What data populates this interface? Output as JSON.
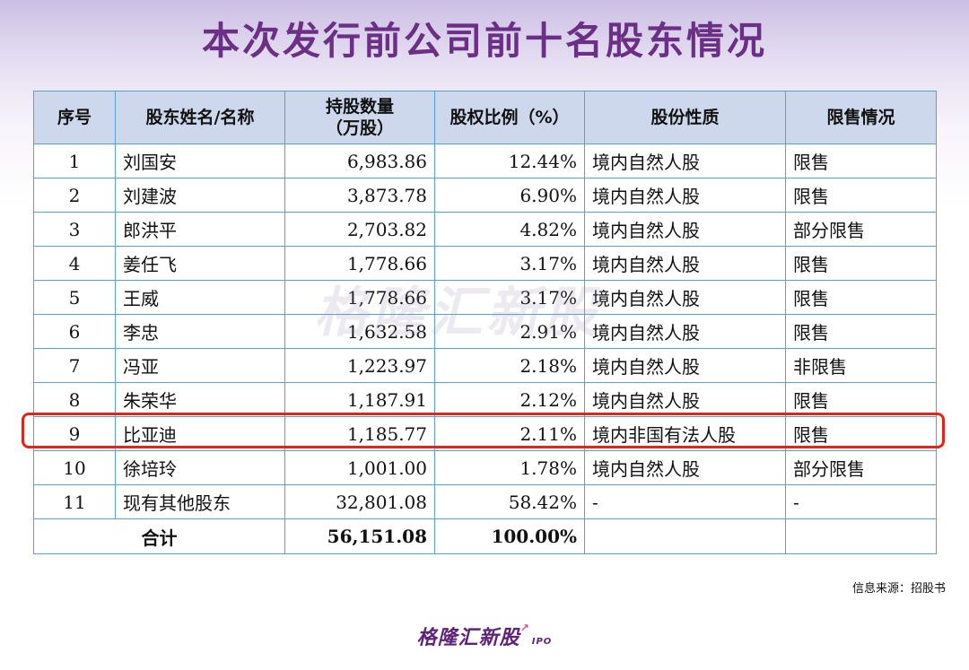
{
  "title": "本次发行前公司前十名股东情况",
  "table": {
    "headers": {
      "seq": "序号",
      "name": "股东姓名/名称",
      "shares_line1": "持股数量",
      "shares_line2": "（万股）",
      "ratio": "股权比例（%）",
      "nature": "股份性质",
      "restriction": "限售情况"
    },
    "rows": [
      {
        "seq": "1",
        "name": "刘国安",
        "shares": "6,983.86",
        "ratio": "12.44%",
        "nature": "境内自然人股",
        "restriction": "限售"
      },
      {
        "seq": "2",
        "name": "刘建波",
        "shares": "3,873.78",
        "ratio": "6.90%",
        "nature": "境内自然人股",
        "restriction": "限售"
      },
      {
        "seq": "3",
        "name": "郎洪平",
        "shares": "2,703.82",
        "ratio": "4.82%",
        "nature": "境内自然人股",
        "restriction": "部分限售"
      },
      {
        "seq": "4",
        "name": "姜任飞",
        "shares": "1,778.66",
        "ratio": "3.17%",
        "nature": "境内自然人股",
        "restriction": "限售"
      },
      {
        "seq": "5",
        "name": "王威",
        "shares": "1,778.66",
        "ratio": "3.17%",
        "nature": "境内自然人股",
        "restriction": "限售"
      },
      {
        "seq": "6",
        "name": "李忠",
        "shares": "1,632.58",
        "ratio": "2.91%",
        "nature": "境内自然人股",
        "restriction": "限售"
      },
      {
        "seq": "7",
        "name": "冯亚",
        "shares": "1,223.97",
        "ratio": "2.18%",
        "nature": "境内自然人股",
        "restriction": "非限售"
      },
      {
        "seq": "8",
        "name": "朱荣华",
        "shares": "1,187.91",
        "ratio": "2.12%",
        "nature": "境内自然人股",
        "restriction": "限售"
      },
      {
        "seq": "9",
        "name": "比亚迪",
        "shares": "1,185.77",
        "ratio": "2.11%",
        "nature": "境内非国有法人股",
        "restriction": "限售"
      },
      {
        "seq": "10",
        "name": "徐培玲",
        "shares": "1,001.00",
        "ratio": "1.78%",
        "nature": "境内自然人股",
        "restriction": "部分限售"
      },
      {
        "seq": "11",
        "name": "现有其他股东",
        "shares": "32,801.08",
        "ratio": "58.42%",
        "nature": "-",
        "restriction": "-"
      }
    ],
    "total": {
      "label": "合计",
      "shares": "56,151.08",
      "ratio": "100.00%"
    }
  },
  "highlight_color": "#e0251b",
  "watermark": "格隆汇新股",
  "source": "信息来源：招股书",
  "logo": {
    "text": "格隆汇新股",
    "sub": "IPO"
  }
}
